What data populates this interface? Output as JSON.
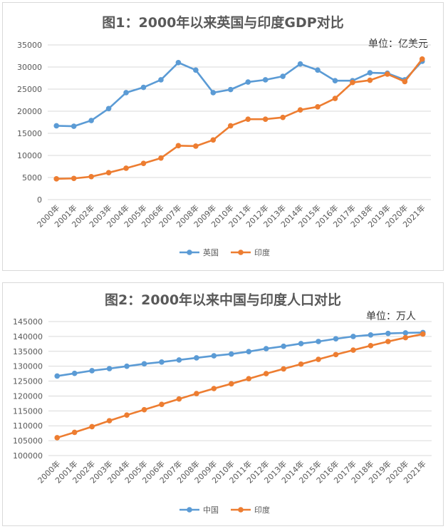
{
  "chart_data": [
    {
      "type": "line",
      "title": "图1：2000年以来英国与印度GDP对比",
      "unit": "单位：亿美元",
      "categories": [
        "2000年",
        "2001年",
        "2002年",
        "2003年",
        "2004年",
        "2005年",
        "2006年",
        "2007年",
        "2008年",
        "2009年",
        "2010年",
        "2011年",
        "2012年",
        "2013年",
        "2014年",
        "2015年",
        "2016年",
        "2017年",
        "2018年",
        "2019年",
        "2020年",
        "2021年"
      ],
      "yticks": [
        "0",
        "5000",
        "10000",
        "15000",
        "20000",
        "25000",
        "30000",
        "35000"
      ],
      "ylim": [
        0,
        35000
      ],
      "grid": true,
      "legend_position": "bottom",
      "series": [
        {
          "name": "英国",
          "color": "#5b9bd5",
          "values": [
            16700,
            16600,
            17900,
            20600,
            24200,
            25400,
            27100,
            31000,
            29300,
            24200,
            24900,
            26600,
            27100,
            27900,
            30700,
            29300,
            26900,
            26900,
            28700,
            28600,
            27100,
            31300
          ]
        },
        {
          "name": "印度",
          "color": "#ed7d31",
          "values": [
            4700,
            4800,
            5200,
            6100,
            7100,
            8200,
            9400,
            12200,
            12100,
            13500,
            16700,
            18200,
            18200,
            18600,
            20300,
            21000,
            22900,
            26500,
            27000,
            28400,
            26700,
            31800
          ]
        }
      ]
    },
    {
      "type": "line",
      "title": "图2：2000年以来中国与印度人口对比",
      "unit": "单位：万人",
      "categories": [
        "2000年",
        "2001年",
        "2002年",
        "2003年",
        "2004年",
        "2005年",
        "2006年",
        "2007年",
        "2008年",
        "2009年",
        "2010年",
        "2011年",
        "2012年",
        "2013年",
        "2014年",
        "2015年",
        "2016年",
        "2017年",
        "2018年",
        "2019年",
        "2020年",
        "2021年"
      ],
      "yticks": [
        "100000",
        "105000",
        "110000",
        "115000",
        "120000",
        "125000",
        "130000",
        "135000",
        "140000",
        "145000"
      ],
      "ylim": [
        100000,
        145000
      ],
      "grid": true,
      "legend_position": "bottom",
      "series": [
        {
          "name": "中国",
          "color": "#5b9bd5",
          "values": [
            126700,
            127600,
            128500,
            129200,
            130000,
            130800,
            131400,
            132100,
            132800,
            133500,
            134100,
            134900,
            135900,
            136700,
            137600,
            138300,
            139200,
            140000,
            140500,
            141000,
            141200,
            141300
          ]
        },
        {
          "name": "印度",
          "color": "#ed7d31",
          "values": [
            106000,
            107800,
            109700,
            111700,
            113600,
            115400,
            117200,
            119000,
            120800,
            122500,
            124100,
            125800,
            127500,
            129100,
            130700,
            132300,
            133900,
            135400,
            136900,
            138300,
            139600,
            140800
          ]
        }
      ]
    }
  ]
}
